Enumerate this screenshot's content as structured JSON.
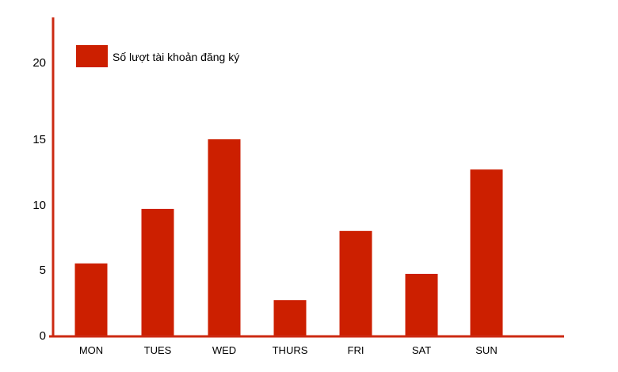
{
  "colors": {
    "bar": "#cc1f00",
    "axis": "#cc2a12",
    "text": "#000000"
  },
  "chart_data": {
    "type": "bar",
    "categories": [
      "MON",
      "TUES",
      "WED",
      "THURS",
      "FRI",
      "SAT",
      "SUN"
    ],
    "series": [
      {
        "name": "Số lượt tài khoản đăng ký",
        "values": [
          5.5,
          9.7,
          15,
          2.7,
          8,
          4.7,
          12.7
        ]
      }
    ],
    "y_ticks": [
      "0",
      "5",
      "10",
      "15",
      "20"
    ],
    "legend_position": "top-left",
    "grid": false
  }
}
